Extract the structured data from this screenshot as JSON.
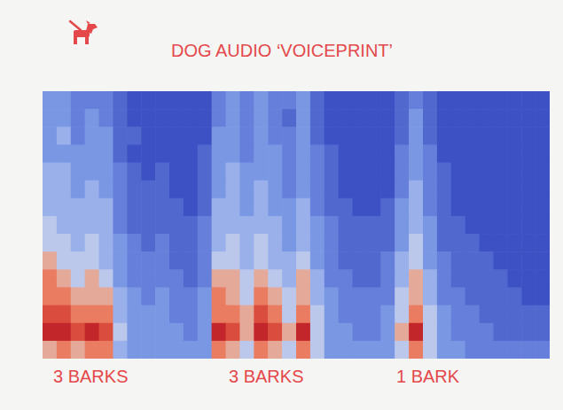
{
  "chart_data": {
    "type": "heatmap",
    "title": "DOG AUDIO ‘VOICEPRINT’",
    "annotations": [
      "3 BARKS",
      "3 BARKS",
      "1 BARK"
    ],
    "tick_labels": false,
    "cells": [
      [
        3,
        3,
        2,
        2,
        2,
        1,
        0,
        0,
        0,
        0,
        0,
        0,
        2,
        3,
        2,
        3,
        2,
        2,
        3,
        1,
        0,
        0,
        0,
        0,
        0,
        1,
        2,
        1,
        0,
        0,
        0,
        0,
        0,
        0,
        0,
        0
      ],
      [
        3,
        3,
        2,
        3,
        2,
        1,
        0,
        0,
        0,
        0,
        0,
        0,
        2,
        3,
        2,
        3,
        2,
        1,
        3,
        1,
        0,
        0,
        0,
        0,
        0,
        1,
        3,
        1,
        0,
        0,
        0,
        0,
        0,
        0,
        0,
        0
      ],
      [
        3,
        4,
        2,
        3,
        3,
        1,
        1,
        0,
        0,
        0,
        0,
        0,
        3,
        3,
        2,
        3,
        2,
        2,
        3,
        1,
        0,
        0,
        0,
        0,
        0,
        1,
        3,
        1,
        0,
        0,
        0,
        0,
        0,
        0,
        0,
        0
      ],
      [
        3,
        3,
        3,
        3,
        3,
        1,
        0,
        0,
        0,
        0,
        0,
        1,
        3,
        3,
        2,
        3,
        3,
        2,
        3,
        2,
        1,
        0,
        0,
        0,
        0,
        2,
        3,
        2,
        0,
        0,
        0,
        0,
        0,
        0,
        0,
        0
      ],
      [
        4,
        4,
        3,
        3,
        3,
        2,
        1,
        0,
        1,
        0,
        0,
        1,
        3,
        4,
        3,
        3,
        3,
        2,
        3,
        2,
        1,
        0,
        0,
        0,
        0,
        2,
        3,
        2,
        1,
        0,
        0,
        0,
        0,
        0,
        0,
        0
      ],
      [
        4,
        4,
        3,
        4,
        3,
        2,
        1,
        1,
        1,
        0,
        0,
        1,
        3,
        4,
        3,
        4,
        3,
        2,
        3,
        2,
        1,
        0,
        0,
        0,
        0,
        2,
        4,
        2,
        1,
        0,
        0,
        0,
        0,
        0,
        0,
        0
      ],
      [
        4,
        4,
        4,
        4,
        4,
        2,
        1,
        1,
        1,
        1,
        0,
        1,
        4,
        4,
        3,
        4,
        3,
        3,
        4,
        2,
        1,
        1,
        0,
        0,
        1,
        3,
        4,
        2,
        1,
        0,
        0,
        0,
        0,
        0,
        0,
        0
      ],
      [
        5,
        4,
        4,
        4,
        4,
        2,
        1,
        1,
        1,
        1,
        1,
        2,
        4,
        4,
        4,
        4,
        4,
        3,
        4,
        3,
        2,
        1,
        1,
        1,
        1,
        3,
        4,
        3,
        1,
        1,
        0,
        0,
        0,
        0,
        0,
        0
      ],
      [
        5,
        5,
        4,
        5,
        4,
        3,
        2,
        1,
        2,
        1,
        1,
        2,
        4,
        5,
        4,
        5,
        4,
        3,
        4,
        3,
        2,
        1,
        1,
        1,
        1,
        3,
        5,
        3,
        1,
        1,
        1,
        0,
        0,
        0,
        0,
        0
      ],
      [
        6,
        5,
        5,
        5,
        4,
        3,
        2,
        2,
        2,
        1,
        1,
        2,
        5,
        5,
        4,
        5,
        4,
        4,
        5,
        3,
        2,
        1,
        1,
        1,
        2,
        4,
        5,
        3,
        2,
        1,
        1,
        1,
        0,
        0,
        0,
        0
      ],
      [
        7,
        6,
        5,
        6,
        5,
        3,
        2,
        2,
        2,
        2,
        1,
        2,
        6,
        6,
        5,
        6,
        5,
        4,
        6,
        4,
        2,
        2,
        1,
        1,
        2,
        4,
        6,
        4,
        2,
        1,
        1,
        1,
        1,
        0,
        0,
        0
      ],
      [
        7,
        7,
        6,
        6,
        6,
        4,
        3,
        2,
        3,
        2,
        2,
        3,
        7,
        6,
        5,
        7,
        6,
        5,
        6,
        4,
        3,
        2,
        2,
        2,
        2,
        5,
        6,
        4,
        2,
        2,
        1,
        1,
        1,
        1,
        0,
        0
      ],
      [
        8,
        8,
        7,
        7,
        7,
        4,
        3,
        3,
        3,
        2,
        2,
        3,
        7,
        7,
        6,
        8,
        7,
        5,
        7,
        5,
        3,
        2,
        2,
        2,
        3,
        5,
        7,
        5,
        3,
        2,
        2,
        1,
        1,
        1,
        1,
        1
      ],
      [
        9,
        9,
        8,
        9,
        8,
        5,
        3,
        3,
        3,
        3,
        2,
        3,
        9,
        8,
        6,
        9,
        8,
        6,
        9,
        5,
        3,
        3,
        2,
        2,
        3,
        6,
        9,
        5,
        3,
        2,
        2,
        2,
        1,
        1,
        1,
        1
      ],
      [
        6,
        7,
        6,
        7,
        7,
        4,
        3,
        3,
        3,
        3,
        3,
        3,
        7,
        6,
        5,
        7,
        6,
        5,
        7,
        5,
        3,
        3,
        3,
        3,
        3,
        5,
        7,
        5,
        3,
        3,
        2,
        2,
        2,
        2,
        2,
        2
      ]
    ]
  }
}
